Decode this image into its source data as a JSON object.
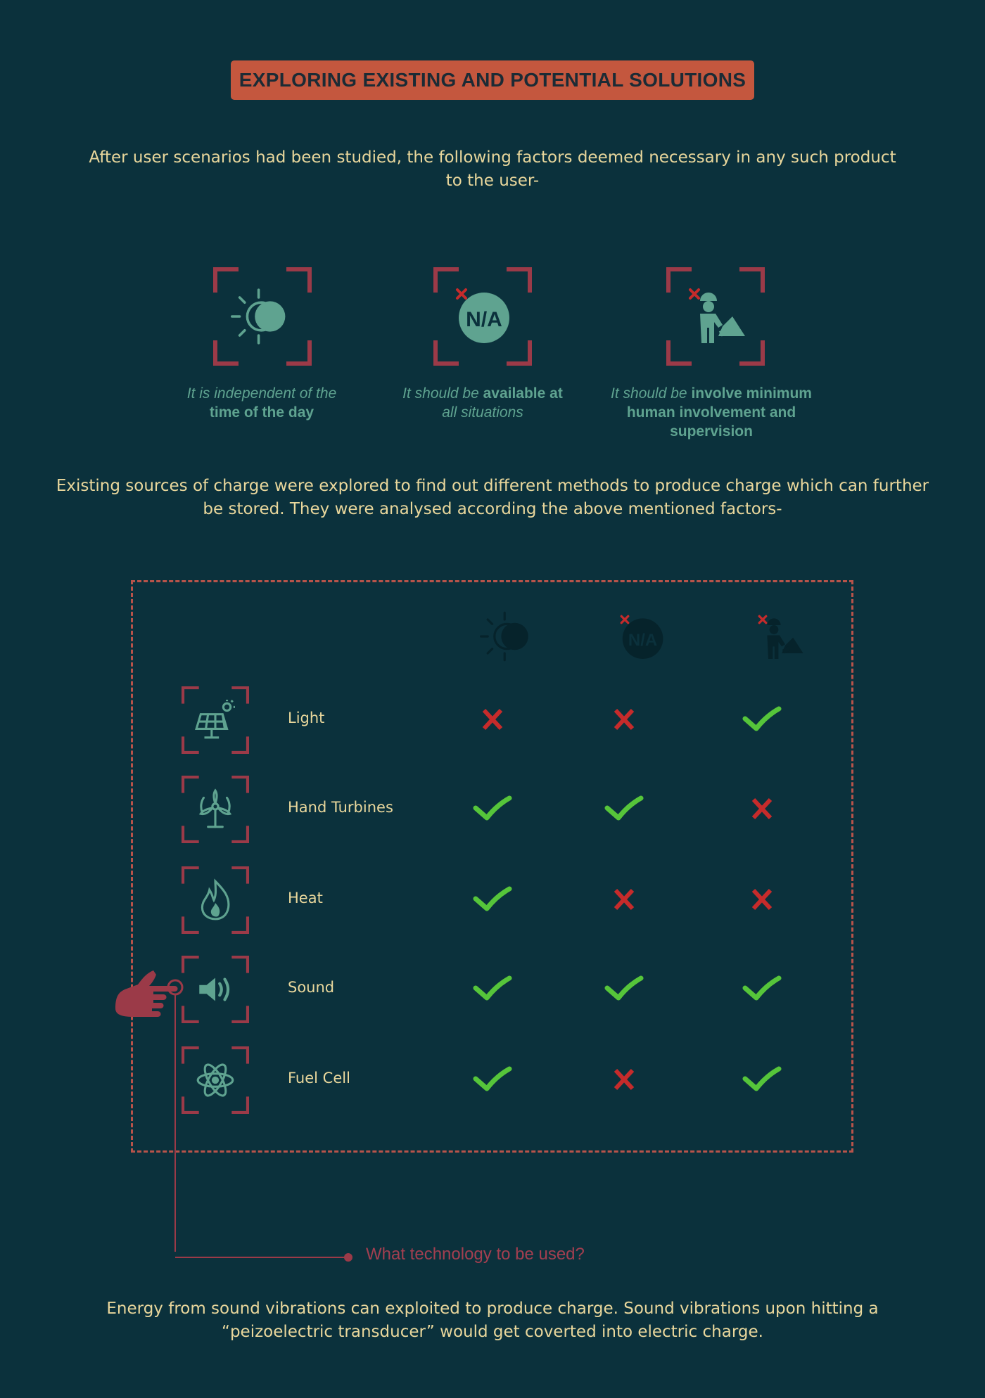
{
  "title": "EXPLORING EXISTING AND POTENTIAL SOLUTIONS",
  "intro": {
    "line1": "After user scenarios had been studied, the following factors deemed necessary in any such product",
    "line2": "to the user-"
  },
  "factors": [
    {
      "icon": "day-night-icon",
      "italic_1": "It is independent of the",
      "bold_1": "",
      "italic_2": "",
      "bold_2": "time of the day",
      "italic_3": ""
    },
    {
      "icon": "not-applicable-icon",
      "italic_1": "It should be ",
      "bold_1": "available at",
      "italic_2": "all situations",
      "bold_2": "",
      "italic_3": ""
    },
    {
      "icon": "worker-icon",
      "italic_1": "It should be ",
      "bold_1": "involve minimum",
      "italic_2": "",
      "bold_2": "human involvement and",
      "italic_3": "supervision"
    }
  ],
  "analysis_intro": {
    "line1": "Existing sources of charge were explored to find out different methods to produce charge which can further",
    "line2": "be stored. They were analysed according the above mentioned factors-"
  },
  "table": {
    "column_icons": [
      "day-night-icon",
      "not-applicable-icon",
      "worker-icon"
    ],
    "rows": [
      {
        "label": "Light",
        "icon": "solar-panel-icon",
        "marks": [
          "cross",
          "cross",
          "check"
        ]
      },
      {
        "label": "Hand Turbines",
        "icon": "wind-turbine-icon",
        "marks": [
          "check",
          "check",
          "cross"
        ]
      },
      {
        "label": "Heat",
        "icon": "flame-icon",
        "marks": [
          "check",
          "cross",
          "cross"
        ]
      },
      {
        "label": "Sound",
        "icon": "speaker-icon",
        "marks": [
          "check",
          "check",
          "check"
        ]
      },
      {
        "label": "Fuel Cell",
        "icon": "atom-icon",
        "marks": [
          "check",
          "cross",
          "check"
        ]
      }
    ]
  },
  "callout": "What technology to be used?",
  "conclusion": {
    "line1": "Energy from sound vibrations can exploited to produce charge. Sound vibrations upon hitting a",
    "line2": "“peizoelectric transducer” would get coverted into electric charge."
  },
  "colors": {
    "background": "#0b313c",
    "accent": "#c4573e",
    "frame": "#9b3a48",
    "icon": "#5fa390",
    "check": "#56c53a",
    "cross": "#c62b2b",
    "text": "#e9d79c"
  }
}
